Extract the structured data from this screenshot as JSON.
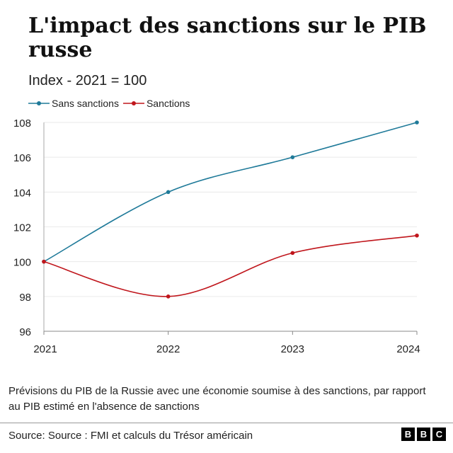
{
  "title": "L'impact des sanctions sur le PIB russe",
  "subtitle": "Index - 2021 = 100",
  "note": "Prévisions du PIB de la Russie avec une économie soumise à des sanctions, par rapport au PIB estimé en l'absence de sanctions",
  "source": "Source: Source : FMI et calculs du Trésor américain",
  "logo": [
    "B",
    "B",
    "C"
  ],
  "chart_data": {
    "type": "line",
    "title": "L'impact des sanctions sur le PIB russe",
    "subtitle": "Index - 2021 = 100",
    "x": [
      "2021",
      "2022",
      "2023",
      "2024"
    ],
    "ylim": [
      96,
      108
    ],
    "yticks": [
      96,
      98,
      100,
      102,
      104,
      106,
      108
    ],
    "grid": true,
    "legend": "top-left",
    "series": [
      {
        "name": "Sans sanctions",
        "color": "#1f7a99",
        "values": [
          100,
          104,
          106,
          108
        ]
      },
      {
        "name": "Sanctions",
        "color": "#c0161c",
        "values": [
          100,
          98,
          100.5,
          101.5
        ]
      }
    ]
  }
}
